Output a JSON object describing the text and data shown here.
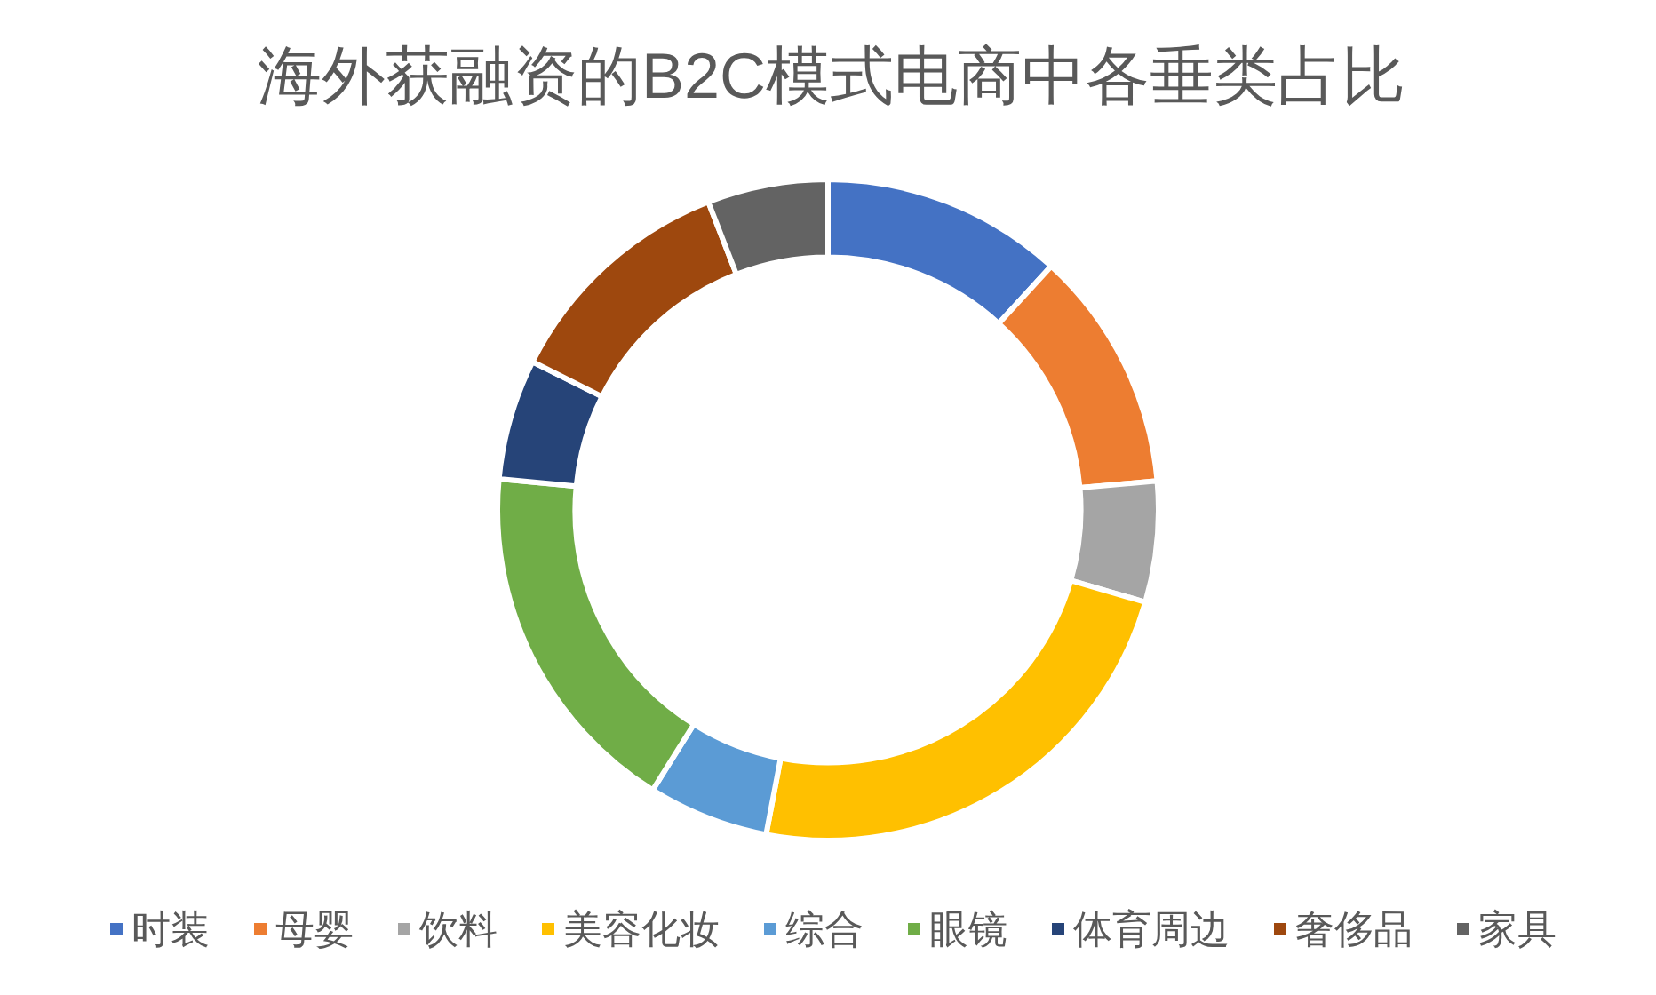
{
  "chart_data": {
    "type": "donut",
    "title": "海外获融资的B2C模式电商中各垂类占比",
    "categories": [
      "时装",
      "母婴",
      "饮料",
      "美容化妆",
      "综合",
      "眼镜",
      "体育周边",
      "奢侈品",
      "家具"
    ],
    "values": [
      11.8,
      11.8,
      5.9,
      23.5,
      5.9,
      17.6,
      5.9,
      11.7,
      5.9
    ],
    "colors": [
      "#4472c4",
      "#ed7d31",
      "#a5a5a5",
      "#ffc000",
      "#5b9bd5",
      "#70ad47",
      "#264478",
      "#9e480e",
      "#636363"
    ],
    "legend": "bottom"
  }
}
